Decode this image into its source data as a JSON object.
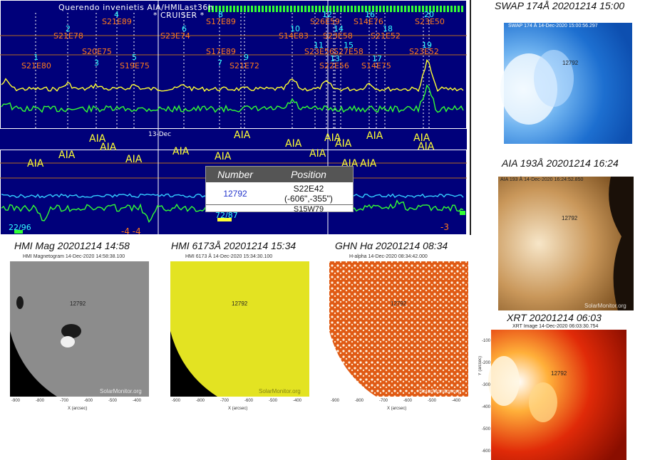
{
  "plot": {
    "header_left": "Querendo invenietis AIA/HMI",
    "header_mid": "Last36h",
    "header_sub": "* CRUISER *",
    "date_label": "13-Dec",
    "bottom_left_label": "22/96",
    "bottom_mid_label": "72/87",
    "bottom_right_label": "-3",
    "bottom_neg": "-4 -4",
    "flare_markers_cyan": [
      "1",
      "2",
      "3",
      "4",
      "5",
      "6",
      "7",
      "8",
      "9",
      "10",
      "11",
      "12",
      "13",
      "14",
      "15",
      "16",
      "17",
      "18",
      "19",
      "20"
    ],
    "flare_markers_orange": [
      "S21E80",
      "S21E78",
      "S20E75",
      "S21E89",
      "S19E75",
      "S23E74",
      "S17E89",
      "S17E89",
      "S21E72",
      "S14E83",
      "S26E59",
      "S23E58",
      "S23E56",
      "S27E58",
      "S22E56",
      "S14E76",
      "S21E52",
      "S14E75",
      "S23E52",
      "S23E50"
    ],
    "aia_label": "AIA"
  },
  "popup": {
    "col_number": "Number",
    "col_position": "Position",
    "number": "12792",
    "position_line1": "S22E42",
    "position_line2": "(-606\",-355\")",
    "next_row": "S15W79"
  },
  "panels": {
    "swap": {
      "title": "SWAP 174Å 20201214 15:00",
      "subtitle": "SWAP 174 Å 14-Dec-2020 15:00:56.297",
      "ar": "12792",
      "watermark": "SolarMonitor.org"
    },
    "aia193": {
      "title": "AIA 193Å 20201214 16:24",
      "subtitle": "AIA 193 Å 14-Dec-2020 16:24:52.850",
      "ar": "12792",
      "watermark": "SolarMonitor.org"
    },
    "xrt": {
      "title": "XRT 20201214 06:03",
      "subtitle": "XRT Image 14-Dec-2020 06:03:30.754",
      "ar": "12792"
    },
    "hmi_mag": {
      "title": "HMI Mag 20201214 14:58",
      "subtitle": "HMI Magnetogram 14-Dec-2020 14:58:38.100",
      "ar": "12792",
      "watermark": "SolarMonitor.org"
    },
    "hmi_cont": {
      "title": "HMI 6173Å 20201214 15:34",
      "subtitle": "HMI 6173 Å 14-Dec-2020 15:34:30.100",
      "ar": "12792",
      "watermark": "SolarMonitor.org"
    },
    "halpha": {
      "title": "GHN Hα 20201214 08:34",
      "subtitle": "H-alpha 14-Dec-2020 08:34:42.000",
      "ar": "12792",
      "watermark": "SolarMonitor.org"
    }
  },
  "axes": {
    "x_label": "X (arcsec)",
    "y_label": "Y (arcsec)",
    "x_ticks": [
      "-900",
      "-800",
      "-700",
      "-600",
      "-500",
      "-400"
    ],
    "y_ticks": [
      "-100",
      "-200",
      "-300",
      "-400",
      "-500",
      "-600"
    ]
  },
  "colors": {
    "plot_bg": "#00007a",
    "goes_long": "#ffff33",
    "goes_short": "#33ff33",
    "magnet": "#33ffff",
    "marker": "#ff7a1a"
  }
}
